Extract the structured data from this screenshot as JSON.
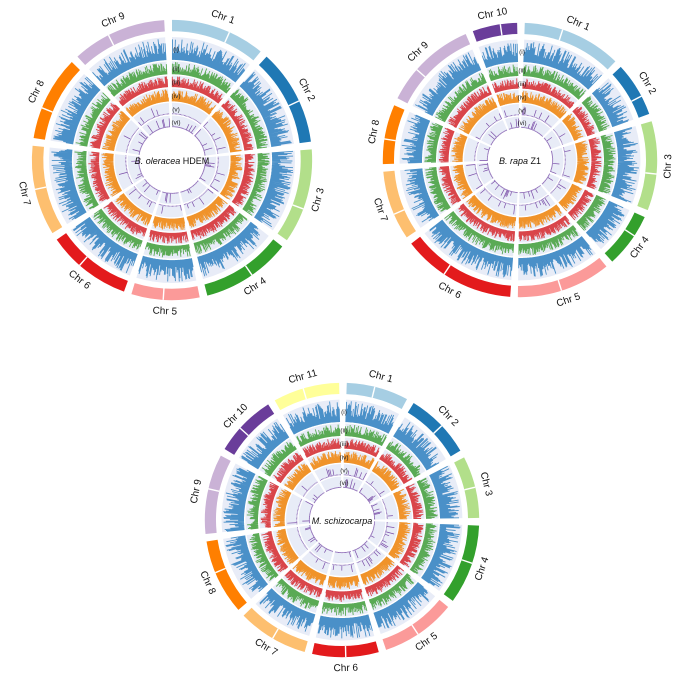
{
  "track_labels": [
    "(i)",
    "(ii)",
    "(iii)",
    "(iv)",
    "(v)",
    "(vi)"
  ],
  "track_colors": [
    "#4a90c8",
    "#5aaa55",
    "#d9454a",
    "#f0932a",
    "#7b4fa8",
    "#7b4fa8"
  ],
  "circos": [
    {
      "species_italic": "B. oleracea",
      "species_rest": " HDEM",
      "chromosomes": [
        {
          "label": "Chr 1",
          "color": "#a6cee3"
        },
        {
          "label": "Chr 2",
          "color": "#1f78b4"
        },
        {
          "label": "Chr 3",
          "color": "#b2df8a"
        },
        {
          "label": "Chr 4",
          "color": "#33a02c"
        },
        {
          "label": "Chr 5",
          "color": "#fb9a99"
        },
        {
          "label": "Chr 6",
          "color": "#e31a1c"
        },
        {
          "label": "Chr 7",
          "color": "#fdbf6f"
        },
        {
          "label": "Chr 8",
          "color": "#ff7f00"
        },
        {
          "label": "Chr 9",
          "color": "#cab2d6"
        }
      ]
    },
    {
      "species_italic": "B. rapa",
      "species_rest": " Z1",
      "chromosomes": [
        {
          "label": "Chr 1",
          "color": "#a6cee3"
        },
        {
          "label": "Chr 2",
          "color": "#1f78b4"
        },
        {
          "label": "Chr 3",
          "color": "#b2df8a"
        },
        {
          "label": "Chr 4",
          "color": "#33a02c"
        },
        {
          "label": "Chr 5",
          "color": "#fb9a99"
        },
        {
          "label": "Chr 6",
          "color": "#e31a1c"
        },
        {
          "label": "Chr 7",
          "color": "#fdbf6f"
        },
        {
          "label": "Chr 8",
          "color": "#ff7f00"
        },
        {
          "label": "Chr 9",
          "color": "#cab2d6"
        },
        {
          "label": "Chr 10",
          "color": "#6a3d9a"
        }
      ]
    },
    {
      "species_italic": "M. schizocarpa",
      "species_rest": "",
      "chromosomes": [
        {
          "label": "Chr 1",
          "color": "#a6cee3"
        },
        {
          "label": "Chr 2",
          "color": "#1f78b4"
        },
        {
          "label": "Chr 3",
          "color": "#b2df8a"
        },
        {
          "label": "Chr 4",
          "color": "#33a02c"
        },
        {
          "label": "Chr 5",
          "color": "#fb9a99"
        },
        {
          "label": "Chr 6",
          "color": "#e31a1c"
        },
        {
          "label": "Chr 7",
          "color": "#fdbf6f"
        },
        {
          "label": "Chr 8",
          "color": "#ff7f00"
        },
        {
          "label": "Chr 9",
          "color": "#cab2d6"
        },
        {
          "label": "Chr 10",
          "color": "#6a3d9a"
        },
        {
          "label": "Chr 11",
          "color": "#ffff99"
        }
      ]
    }
  ]
}
